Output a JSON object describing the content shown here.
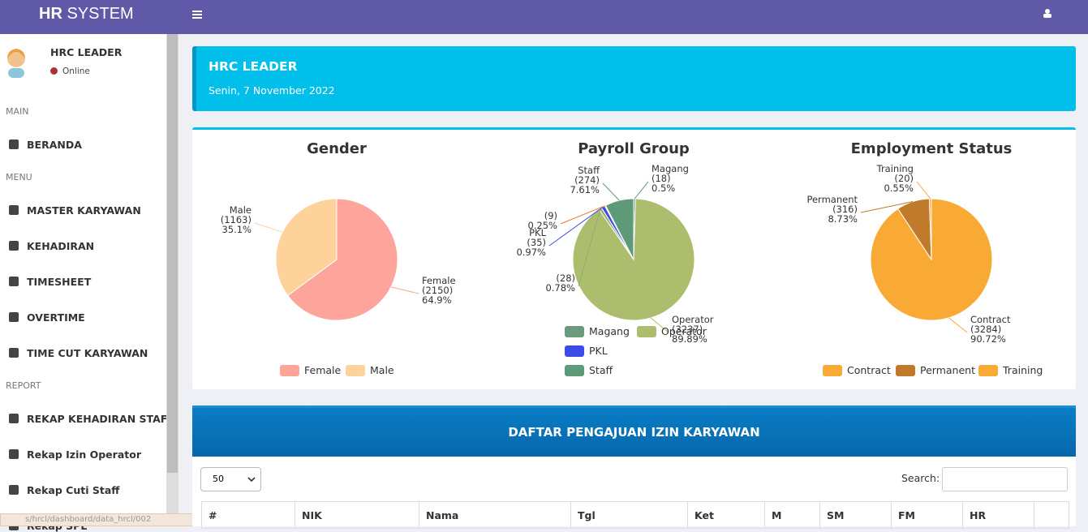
{
  "header": {
    "brand_bold": "HR",
    "brand_rest": "SYSTEM"
  },
  "sidebar": {
    "user_name": "HRC LEADER",
    "status": "Online",
    "sections": [
      {
        "title": "MAIN",
        "items": [
          "BERANDA"
        ]
      },
      {
        "title": "MENU",
        "items": [
          "MASTER KARYAWAN",
          "KEHADIRAN",
          "TIMESHEET",
          "OVERTIME",
          "TIME CUT KARYAWAN"
        ]
      },
      {
        "title": "REPORT",
        "items": [
          "REKAP KEHADIRAN STAFF",
          "Rekap Izin Operator",
          "Rekap Cuti Staff",
          "Rekap SPL"
        ]
      }
    ],
    "status_url": "s/hrcl/dashboard/data_hrcl/002"
  },
  "banner": {
    "title": "HRC LEADER",
    "date": "Senin, 7 November 2022"
  },
  "chart_data": [
    {
      "type": "pie",
      "title": "Gender",
      "categories": [
        "Female",
        "Male"
      ],
      "values": [
        2150,
        1163
      ],
      "value_labels": [
        "(2150)",
        "(1163)"
      ],
      "percents": [
        64.9,
        35.1
      ],
      "percent_labels": [
        "64.9%",
        "35.1%"
      ],
      "colors": [
        "#fda49b",
        "#fdd39b"
      ],
      "legend": true
    },
    {
      "type": "pie",
      "title": "Payroll Group",
      "categories": [
        "Magang",
        "Operator",
        null,
        "PKL",
        null,
        "Staff"
      ],
      "values": [
        18,
        3237,
        28,
        35,
        9,
        274
      ],
      "value_labels": [
        "(18)",
        "(3237)",
        "(28)",
        "(35)",
        "(9)",
        "(274)"
      ],
      "percents": [
        0.5,
        89.89,
        0.78,
        0.97,
        0.25,
        7.61
      ],
      "percent_labels": [
        "0.5%",
        "89.89%",
        "0.78%",
        "0.97%",
        "0.25%",
        "7.61%"
      ],
      "colors": [
        "#6b9a7d",
        "#adbd6e",
        "#8fae72",
        "#3d4ce6",
        "#f07c2f",
        "#5f9a78"
      ],
      "legend": true
    },
    {
      "type": "pie",
      "title": "Employment Status",
      "categories": [
        "Contract",
        "Permanent",
        "Training"
      ],
      "values": [
        3284,
        316,
        20
      ],
      "value_labels": [
        "(3284)",
        "(316)",
        "(20)"
      ],
      "percents": [
        90.72,
        8.73,
        0.55
      ],
      "percent_labels": [
        "90.72%",
        "8.73%",
        "0.55%"
      ],
      "colors": [
        "#f9aa35",
        "#c07a2c",
        "#f9aa35"
      ],
      "legend": true
    }
  ],
  "table": {
    "title": "DAFTAR PENGAJUAN IZIN KARYAWAN",
    "page_length": "50",
    "search_label": "Search:",
    "columns": [
      "#",
      "NIK",
      "Nama",
      "Tgl",
      "Ket",
      "M",
      "SM",
      "FM",
      "HR"
    ]
  }
}
